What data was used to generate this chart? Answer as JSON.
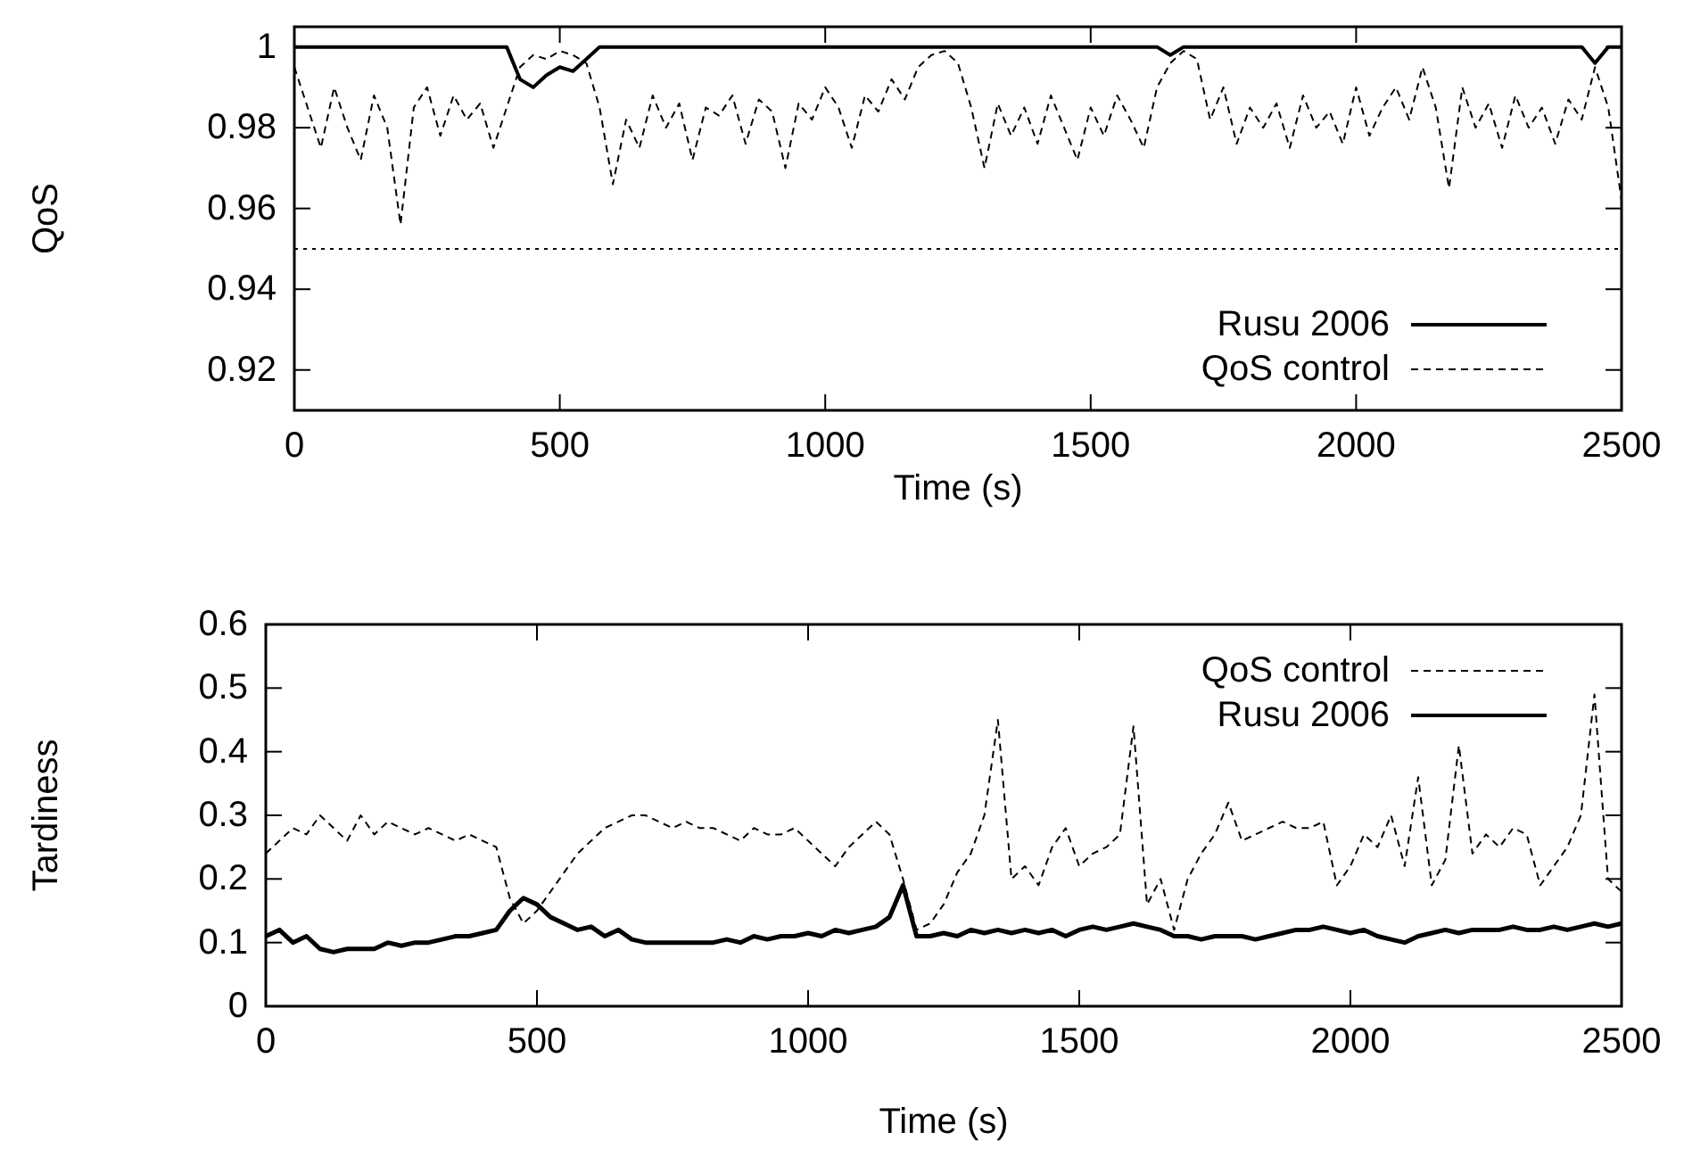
{
  "chart_data": [
    {
      "type": "line",
      "xlabel": "Time (s)",
      "ylabel": "QoS",
      "xlim": [
        0,
        2500
      ],
      "xticks": [
        0,
        500,
        1000,
        1500,
        2000,
        2500
      ],
      "ylim": [
        0.91,
        1.005
      ],
      "yticks": [
        0.92,
        0.94,
        0.96,
        0.98,
        1
      ],
      "legend": "bottom right",
      "grid": false,
      "x": [
        0,
        25,
        50,
        75,
        100,
        125,
        150,
        175,
        200,
        225,
        250,
        275,
        300,
        325,
        350,
        375,
        400,
        425,
        450,
        475,
        500,
        525,
        550,
        575,
        600,
        625,
        650,
        675,
        700,
        725,
        750,
        775,
        800,
        825,
        850,
        875,
        900,
        925,
        950,
        975,
        1000,
        1025,
        1050,
        1075,
        1100,
        1125,
        1150,
        1175,
        1200,
        1225,
        1250,
        1275,
        1300,
        1325,
        1350,
        1375,
        1400,
        1425,
        1450,
        1475,
        1500,
        1525,
        1550,
        1575,
        1600,
        1625,
        1650,
        1675,
        1700,
        1725,
        1750,
        1775,
        1800,
        1825,
        1850,
        1875,
        1900,
        1925,
        1950,
        1975,
        2000,
        2025,
        2050,
        2075,
        2100,
        2125,
        2150,
        2175,
        2200,
        2225,
        2250,
        2275,
        2300,
        2325,
        2350,
        2375,
        2400,
        2425,
        2450,
        2475,
        2500
      ],
      "ref_lines": [
        {
          "axis": "y",
          "value": 0.95,
          "color": "#000000",
          "line_style": "dotted"
        }
      ],
      "series": [
        {
          "name": "Rusu 2006",
          "color": "#000000",
          "line_style": "solid",
          "values": [
            1,
            1,
            1,
            1,
            1,
            1,
            1,
            1,
            1,
            1,
            1,
            1,
            1,
            1,
            1,
            1,
            1,
            0.992,
            0.99,
            0.993,
            0.995,
            0.994,
            0.997,
            1,
            1,
            1,
            1,
            1,
            1,
            1,
            1,
            1,
            1,
            1,
            1,
            1,
            1,
            1,
            1,
            1,
            1,
            1,
            1,
            1,
            1,
            1,
            1,
            1,
            1,
            1,
            1,
            1,
            1,
            1,
            1,
            1,
            1,
            1,
            1,
            1,
            1,
            1,
            1,
            1,
            1,
            1,
            0.998,
            1,
            1,
            1,
            1,
            1,
            1,
            1,
            1,
            1,
            1,
            1,
            1,
            1,
            1,
            1,
            1,
            1,
            1,
            1,
            1,
            1,
            1,
            1,
            1,
            1,
            1,
            1,
            1,
            1,
            1,
            1,
            0.996,
            1,
            1
          ]
        },
        {
          "name": "QoS control",
          "color": "#000000",
          "line_style": "dashed",
          "values": [
            0.995,
            0.985,
            0.975,
            0.99,
            0.98,
            0.972,
            0.988,
            0.98,
            0.956,
            0.985,
            0.99,
            0.978,
            0.988,
            0.982,
            0.986,
            0.975,
            0.985,
            0.995,
            0.998,
            0.997,
            0.999,
            0.998,
            0.996,
            0.985,
            0.966,
            0.982,
            0.975,
            0.988,
            0.98,
            0.986,
            0.972,
            0.985,
            0.983,
            0.988,
            0.976,
            0.987,
            0.984,
            0.97,
            0.986,
            0.982,
            0.99,
            0.985,
            0.975,
            0.988,
            0.984,
            0.992,
            0.987,
            0.995,
            0.998,
            0.999,
            0.996,
            0.985,
            0.97,
            0.986,
            0.978,
            0.985,
            0.976,
            0.988,
            0.98,
            0.972,
            0.985,
            0.978,
            0.988,
            0.982,
            0.975,
            0.99,
            0.996,
            0.999,
            0.997,
            0.982,
            0.99,
            0.976,
            0.985,
            0.98,
            0.986,
            0.975,
            0.988,
            0.98,
            0.984,
            0.976,
            0.99,
            0.978,
            0.985,
            0.99,
            0.982,
            0.995,
            0.985,
            0.965,
            0.99,
            0.98,
            0.986,
            0.975,
            0.988,
            0.98,
            0.985,
            0.976,
            0.987,
            0.982,
            0.995,
            0.985,
            0.962
          ]
        }
      ]
    },
    {
      "type": "line",
      "xlabel": "Time (s)",
      "ylabel": "Tardiness",
      "xlim": [
        0,
        2500
      ],
      "xticks": [
        0,
        500,
        1000,
        1500,
        2000,
        2500
      ],
      "ylim": [
        0,
        0.6
      ],
      "yticks": [
        0,
        0.1,
        0.2,
        0.3,
        0.4,
        0.5,
        0.6
      ],
      "legend": "top right",
      "grid": false,
      "x": [
        0,
        25,
        50,
        75,
        100,
        125,
        150,
        175,
        200,
        225,
        250,
        275,
        300,
        325,
        350,
        375,
        400,
        425,
        450,
        475,
        500,
        525,
        550,
        575,
        600,
        625,
        650,
        675,
        700,
        725,
        750,
        775,
        800,
        825,
        850,
        875,
        900,
        925,
        950,
        975,
        1000,
        1025,
        1050,
        1075,
        1100,
        1125,
        1150,
        1175,
        1200,
        1225,
        1250,
        1275,
        1300,
        1325,
        1350,
        1375,
        1400,
        1425,
        1450,
        1475,
        1500,
        1525,
        1550,
        1575,
        1600,
        1625,
        1650,
        1675,
        1700,
        1725,
        1750,
        1775,
        1800,
        1825,
        1850,
        1875,
        1900,
        1925,
        1950,
        1975,
        2000,
        2025,
        2050,
        2075,
        2100,
        2125,
        2150,
        2175,
        2200,
        2225,
        2250,
        2275,
        2300,
        2325,
        2350,
        2375,
        2400,
        2425,
        2450,
        2475,
        2500
      ],
      "series": [
        {
          "name": "QoS control",
          "color": "#000000",
          "line_style": "dashed",
          "values": [
            0.24,
            0.26,
            0.28,
            0.27,
            0.3,
            0.28,
            0.26,
            0.3,
            0.27,
            0.29,
            0.28,
            0.27,
            0.28,
            0.27,
            0.26,
            0.27,
            0.26,
            0.25,
            0.17,
            0.13,
            0.15,
            0.18,
            0.21,
            0.24,
            0.26,
            0.28,
            0.29,
            0.3,
            0.3,
            0.29,
            0.28,
            0.29,
            0.28,
            0.28,
            0.27,
            0.26,
            0.28,
            0.27,
            0.27,
            0.28,
            0.26,
            0.24,
            0.22,
            0.25,
            0.27,
            0.29,
            0.27,
            0.2,
            0.12,
            0.13,
            0.16,
            0.21,
            0.24,
            0.3,
            0.45,
            0.2,
            0.22,
            0.19,
            0.25,
            0.28,
            0.22,
            0.24,
            0.25,
            0.27,
            0.44,
            0.16,
            0.2,
            0.12,
            0.2,
            0.24,
            0.27,
            0.32,
            0.26,
            0.27,
            0.28,
            0.29,
            0.28,
            0.28,
            0.29,
            0.19,
            0.22,
            0.27,
            0.25,
            0.3,
            0.22,
            0.36,
            0.19,
            0.23,
            0.41,
            0.24,
            0.27,
            0.25,
            0.28,
            0.27,
            0.19,
            0.22,
            0.25,
            0.3,
            0.49,
            0.2,
            0.18
          ]
        },
        {
          "name": "Rusu 2006",
          "color": "#000000",
          "line_style": "solid",
          "values": [
            0.11,
            0.12,
            0.1,
            0.11,
            0.09,
            0.085,
            0.09,
            0.09,
            0.09,
            0.1,
            0.095,
            0.1,
            0.1,
            0.105,
            0.11,
            0.11,
            0.115,
            0.12,
            0.15,
            0.17,
            0.16,
            0.14,
            0.13,
            0.12,
            0.125,
            0.11,
            0.12,
            0.105,
            0.1,
            0.1,
            0.1,
            0.1,
            0.1,
            0.1,
            0.105,
            0.1,
            0.11,
            0.105,
            0.11,
            0.11,
            0.115,
            0.11,
            0.12,
            0.115,
            0.12,
            0.125,
            0.14,
            0.19,
            0.11,
            0.11,
            0.115,
            0.11,
            0.12,
            0.115,
            0.12,
            0.115,
            0.12,
            0.115,
            0.12,
            0.11,
            0.12,
            0.125,
            0.12,
            0.125,
            0.13,
            0.125,
            0.12,
            0.11,
            0.11,
            0.105,
            0.11,
            0.11,
            0.11,
            0.105,
            0.11,
            0.115,
            0.12,
            0.12,
            0.125,
            0.12,
            0.115,
            0.12,
            0.11,
            0.105,
            0.1,
            0.11,
            0.115,
            0.12,
            0.115,
            0.12,
            0.12,
            0.12,
            0.125,
            0.12,
            0.12,
            0.125,
            0.12,
            0.125,
            0.13,
            0.125,
            0.13
          ]
        }
      ]
    }
  ]
}
